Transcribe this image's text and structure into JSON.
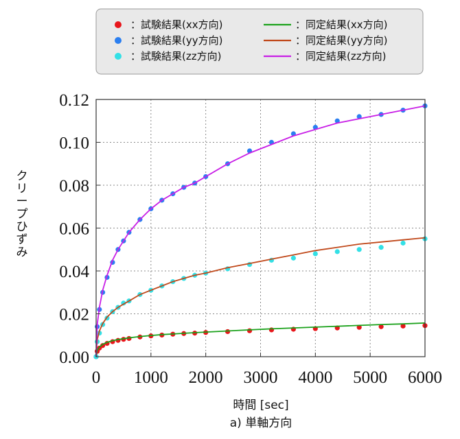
{
  "chart_data": {
    "type": "scatter",
    "xlabel": "時間 [sec]",
    "caption": "a) 単軸方向",
    "ylabel": "クリープひずみ",
    "xlim": [
      0,
      6000
    ],
    "ylim": [
      0,
      0.12
    ],
    "xticks": [
      "0",
      "1000",
      "2000",
      "3000",
      "4000",
      "5000",
      "6000"
    ],
    "yticks": [
      "0.00",
      "0.02",
      "0.04",
      "0.06",
      "0.08",
      "0.10",
      "0.12"
    ],
    "grid": true,
    "legend_position": "top",
    "series": [
      {
        "name": "：試験結果(xx方向)",
        "kind": "scatter",
        "color": "#e8161b",
        "x": [
          0,
          20,
          60,
          120,
          200,
          300,
          400,
          500,
          600,
          800,
          1000,
          1200,
          1400,
          1600,
          1800,
          2000,
          2400,
          2800,
          3200,
          3600,
          4000,
          4400,
          4800,
          5200,
          5600,
          6000
        ],
        "y": [
          0.0,
          0.0025,
          0.004,
          0.0052,
          0.0062,
          0.007,
          0.0076,
          0.0081,
          0.0085,
          0.0092,
          0.0097,
          0.0101,
          0.0105,
          0.0108,
          0.011,
          0.0113,
          0.0117,
          0.0121,
          0.0125,
          0.0128,
          0.0131,
          0.0134,
          0.0137,
          0.014,
          0.0143,
          0.0145
        ]
      },
      {
        "name": "：試験結果(yy方向)",
        "kind": "scatter",
        "color": "#2b7ff0",
        "x": [
          0,
          20,
          60,
          120,
          200,
          300,
          400,
          500,
          600,
          800,
          1000,
          1200,
          1400,
          1600,
          1800,
          2000,
          2400,
          2800,
          3200,
          3600,
          4000,
          4400,
          4800,
          5200,
          5600,
          6000
        ],
        "y": [
          0.0,
          0.014,
          0.022,
          0.03,
          0.037,
          0.044,
          0.05,
          0.054,
          0.058,
          0.064,
          0.069,
          0.073,
          0.076,
          0.079,
          0.081,
          0.084,
          0.09,
          0.096,
          0.1,
          0.104,
          0.107,
          0.11,
          0.112,
          0.113,
          0.115,
          0.117
        ]
      },
      {
        "name": "：試験結果(zz方向)",
        "kind": "scatter",
        "color": "#33e0e6",
        "x": [
          0,
          20,
          60,
          120,
          200,
          300,
          400,
          500,
          600,
          800,
          1000,
          1200,
          1400,
          1600,
          1800,
          2000,
          2400,
          2800,
          3200,
          3600,
          4000,
          4400,
          4800,
          5200,
          5600,
          6000
        ],
        "y": [
          0.0,
          0.007,
          0.011,
          0.015,
          0.018,
          0.021,
          0.023,
          0.025,
          0.026,
          0.029,
          0.031,
          0.033,
          0.035,
          0.0365,
          0.038,
          0.039,
          0.041,
          0.043,
          0.045,
          0.046,
          0.048,
          0.049,
          0.05,
          0.051,
          0.053,
          0.055
        ]
      },
      {
        "name": "：同定結果(xx方向)",
        "kind": "line",
        "color": "#1aa11a",
        "x": [
          0,
          20,
          60,
          120,
          200,
          300,
          400,
          500,
          600,
          800,
          1000,
          1200,
          1400,
          1600,
          1800,
          2000,
          2400,
          2800,
          3200,
          3600,
          4000,
          4400,
          4800,
          5200,
          5600,
          6000
        ],
        "y": [
          0.0,
          0.003,
          0.0045,
          0.0058,
          0.0067,
          0.0075,
          0.008,
          0.0084,
          0.0088,
          0.0094,
          0.0099,
          0.0103,
          0.0106,
          0.0109,
          0.0112,
          0.0115,
          0.012,
          0.0125,
          0.013,
          0.0134,
          0.0138,
          0.0142,
          0.0146,
          0.015,
          0.0153,
          0.0157
        ]
      },
      {
        "name": "：同定結果(yy方向)",
        "kind": "line",
        "color": "#c0481a",
        "x": [
          0,
          20,
          60,
          120,
          200,
          300,
          400,
          500,
          600,
          800,
          1000,
          1200,
          1400,
          1600,
          1800,
          2000,
          2400,
          2800,
          3200,
          3600,
          4000,
          4400,
          4800,
          5200,
          5600,
          6000
        ],
        "y": [
          0.0,
          0.008,
          0.012,
          0.0155,
          0.0185,
          0.021,
          0.023,
          0.0245,
          0.026,
          0.029,
          0.031,
          0.033,
          0.035,
          0.0365,
          0.038,
          0.039,
          0.0415,
          0.0435,
          0.0455,
          0.0475,
          0.0495,
          0.051,
          0.0525,
          0.0535,
          0.0545,
          0.0555
        ]
      },
      {
        "name": "：同定結果(zz方向)",
        "kind": "line",
        "color": "#c81ee6",
        "x": [
          0,
          20,
          60,
          120,
          200,
          300,
          400,
          500,
          600,
          800,
          1000,
          1200,
          1400,
          1600,
          1800,
          2000,
          2400,
          2800,
          3200,
          3600,
          4000,
          4400,
          4800,
          5200,
          5600,
          6000
        ],
        "y": [
          0.0,
          0.015,
          0.023,
          0.031,
          0.038,
          0.045,
          0.05,
          0.054,
          0.058,
          0.064,
          0.069,
          0.073,
          0.076,
          0.079,
          0.081,
          0.084,
          0.09,
          0.095,
          0.099,
          0.103,
          0.106,
          0.109,
          0.111,
          0.113,
          0.115,
          0.117
        ]
      }
    ]
  }
}
